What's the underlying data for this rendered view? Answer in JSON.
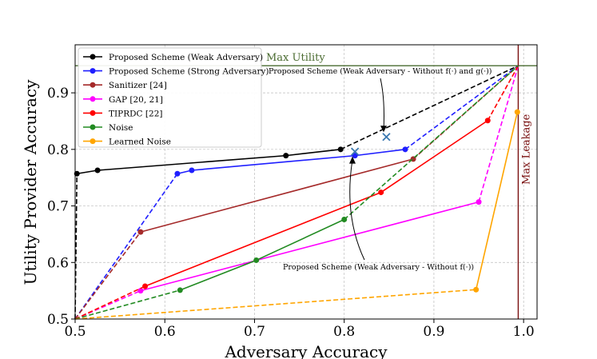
{
  "chart_data": {
    "type": "line",
    "title": "",
    "xlabel": "Adversary Accuracy",
    "ylabel": "Utility Provider Accuracy",
    "xlim": [
      0.5,
      1.015
    ],
    "ylim": [
      0.5,
      0.985
    ],
    "xticks": [
      0.5,
      0.6,
      0.7,
      0.8,
      0.9,
      1.0
    ],
    "xtick_labels": [
      "0.5",
      "0.6",
      "0.7",
      "0.8",
      "0.9",
      "1.0"
    ],
    "yticks": [
      0.5,
      0.6,
      0.7,
      0.8,
      0.9
    ],
    "ytick_labels": [
      "0.5",
      "0.6",
      "0.7",
      "0.8",
      "0.9"
    ],
    "grid": true,
    "max_utility": {
      "value": 0.948,
      "label": "Max Utility",
      "color": "#4a6b30"
    },
    "max_leakage": {
      "value": 0.994,
      "label": "Max Leakage",
      "color": "#7a1010"
    },
    "series": [
      {
        "name": "Proposed Scheme (Weak Adversary)",
        "color": "#000000",
        "x": [
          0.5,
          0.502,
          0.525,
          0.735,
          0.796,
          0.994
        ],
        "y": [
          0.5,
          0.757,
          0.763,
          0.789,
          0.8,
          0.948
        ],
        "solid_segments": [
          1,
          2,
          3
        ],
        "dashed_segments": [
          0,
          4
        ]
      },
      {
        "name": "Proposed Scheme (Strong Adversary)",
        "color": "#1f1fff",
        "x": [
          0.5,
          0.614,
          0.63,
          0.812,
          0.868,
          0.994
        ],
        "y": [
          0.5,
          0.757,
          0.763,
          0.789,
          0.8,
          0.948
        ],
        "solid_segments": [
          1,
          2,
          3
        ],
        "dashed_segments": [
          0,
          4
        ]
      },
      {
        "name": "Sanitizer [24]",
        "color": "#a52a2a",
        "x": [
          0.5,
          0.573,
          0.877,
          0.994
        ],
        "y": [
          0.5,
          0.654,
          0.783,
          0.948
        ],
        "solid_segments": [
          1
        ],
        "dashed_segments": [
          0,
          2
        ]
      },
      {
        "name": "GAP [20, 21]",
        "color": "#ff00ff",
        "x": [
          0.5,
          0.573,
          0.95,
          0.994
        ],
        "y": [
          0.5,
          0.55,
          0.707,
          0.948
        ],
        "solid_segments": [
          1
        ],
        "dashed_segments": [
          0,
          2
        ]
      },
      {
        "name": "TIPRDC [22]",
        "color": "#ff0000",
        "x": [
          0.5,
          0.578,
          0.841,
          0.96,
          0.994
        ],
        "y": [
          0.5,
          0.558,
          0.724,
          0.851,
          0.948
        ],
        "solid_segments": [
          1,
          2
        ],
        "dashed_segments": [
          0,
          3
        ]
      },
      {
        "name": "Noise",
        "color": "#228b22",
        "x": [
          0.5,
          0.617,
          0.702,
          0.8,
          0.994
        ],
        "y": [
          0.5,
          0.551,
          0.604,
          0.676,
          0.948
        ],
        "solid_segments": [
          1,
          2
        ],
        "dashed_segments": [
          0,
          3
        ]
      },
      {
        "name": "Learned Noise",
        "color": "#ffa500",
        "x": [
          0.5,
          0.947,
          0.993
        ],
        "y": [
          0.5,
          0.552,
          0.866
        ],
        "solid_segments": [
          1
        ],
        "dashed_segments": [
          0
        ]
      }
    ],
    "ablation_points": [
      {
        "label": "Proposed Scheme (Weak Adversary - Without f(·) and g(·))",
        "x": 0.847,
        "y": 0.822,
        "color": "#3a78b0"
      },
      {
        "label": "Proposed Scheme (Weak Adversary - Without f(·))",
        "x": 0.812,
        "y": 0.796,
        "color": "#3a78b0"
      }
    ],
    "legend_position": "top-left"
  }
}
